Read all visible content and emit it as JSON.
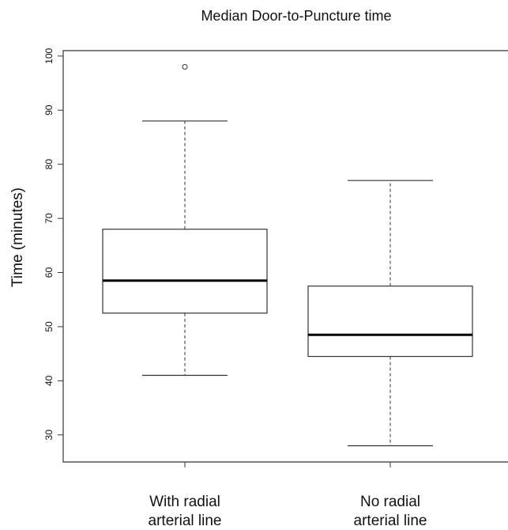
{
  "chart_data": {
    "type": "box",
    "title": "Median Door-to-Puncture time",
    "ylabel": "Time (minutes)",
    "xlabel": "",
    "ylim": [
      25,
      101
    ],
    "yticks": [
      "30",
      "40",
      "50",
      "60",
      "70",
      "80",
      "90",
      "100"
    ],
    "grid": false,
    "groups": [
      {
        "label_lines": [
          "With radial",
          "arterial line"
        ],
        "whisker_low": 41,
        "q1": 52.5,
        "median": 58.5,
        "q3": 68,
        "whisker_high": 88,
        "outliers": [
          98
        ]
      },
      {
        "label_lines": [
          "No radial",
          "arterial line"
        ],
        "whisker_low": 28,
        "q1": 44.5,
        "median": 48.5,
        "q3": 57.5,
        "whisker_high": 77,
        "outliers": []
      }
    ]
  }
}
